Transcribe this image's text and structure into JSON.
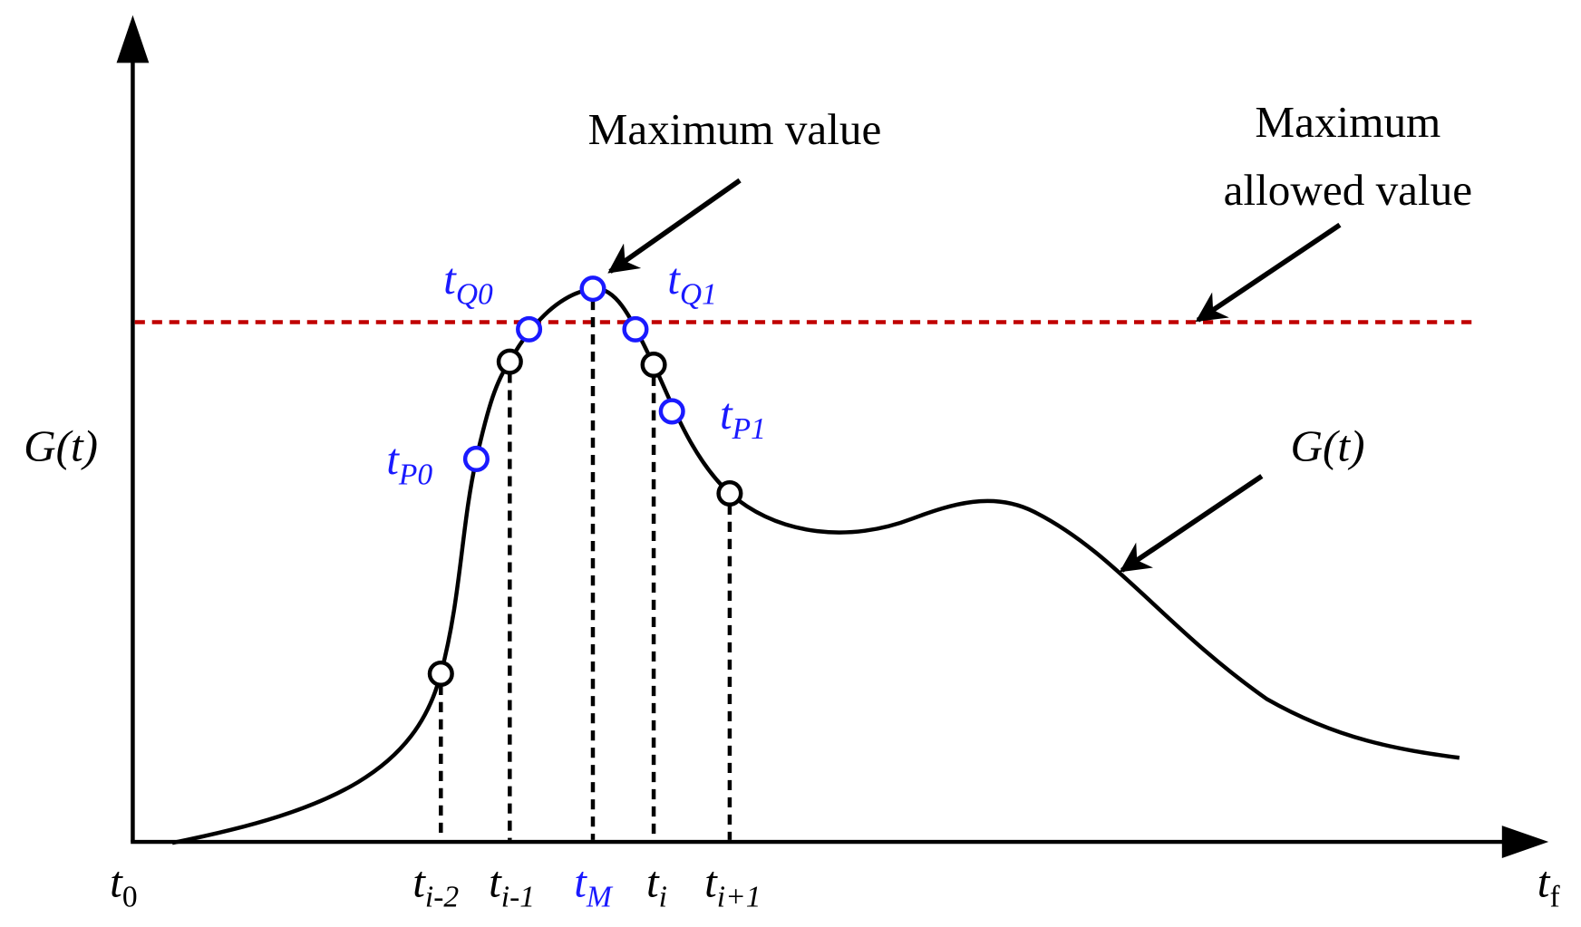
{
  "axis_label": "G(t)",
  "curve_label": "G(t)",
  "maximum_value_label": "Maximum value",
  "maximum_allowed_label": [
    "Maximum",
    "allowed value"
  ],
  "x_labels": [
    {
      "base": "t",
      "sub": "0"
    },
    {
      "base": "t",
      "sub": "i-2"
    },
    {
      "base": "t",
      "sub": "i-1"
    },
    {
      "base": "t",
      "sub": "M"
    },
    {
      "base": "t",
      "sub": "i"
    },
    {
      "base": "t",
      "sub": "i+1"
    },
    {
      "base": "t",
      "sub": "f"
    }
  ],
  "point_labels": [
    {
      "base": "t",
      "sub": "Q0"
    },
    {
      "base": "t",
      "sub": "Q1"
    },
    {
      "base": "t",
      "sub": "P0"
    },
    {
      "base": "t",
      "sub": "P1"
    }
  ]
}
